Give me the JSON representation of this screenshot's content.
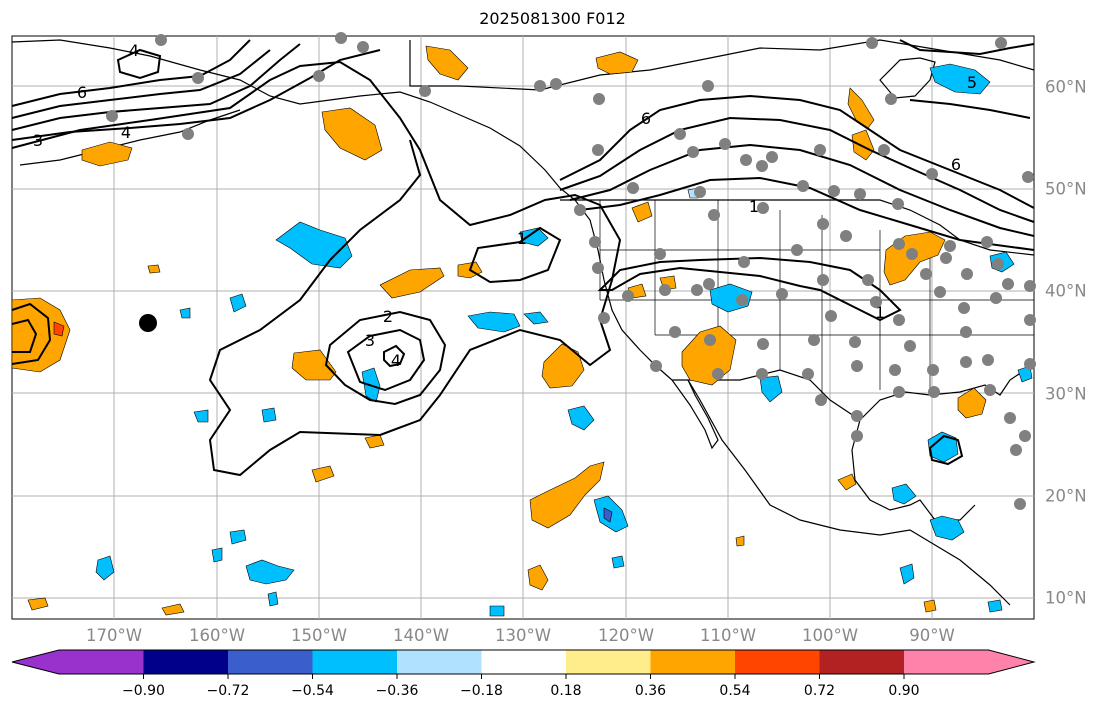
{
  "title": "2025081300 F012",
  "axes": {
    "lon_labels": [
      "170°W",
      "160°W",
      "150°W",
      "140°W",
      "130°W",
      "120°W",
      "110°W",
      "100°W",
      "90°W"
    ],
    "lat_labels": [
      "60°N",
      "50°N",
      "40°N",
      "30°N",
      "20°N",
      "10°N"
    ]
  },
  "contour_labels": [
    "1",
    "2",
    "3",
    "4",
    "5",
    "6"
  ],
  "colorbar": {
    "ticks": [
      "−0.90",
      "−0.72",
      "−0.54",
      "−0.36",
      "−0.18",
      "0.18",
      "0.36",
      "0.54",
      "0.72",
      "0.90"
    ],
    "colors": [
      "#9932cc",
      "#00008b",
      "#3a5fcd",
      "#00bfff",
      "#b0e2ff",
      "#ffffff",
      "#ffec8b",
      "#ffa500",
      "#ff4500",
      "#b22222",
      "#ff82ab"
    ]
  },
  "colors": {
    "positive": "#ffa500",
    "negative": "#00bfff",
    "dots": "#808080",
    "grid": "#b0b0b0"
  }
}
